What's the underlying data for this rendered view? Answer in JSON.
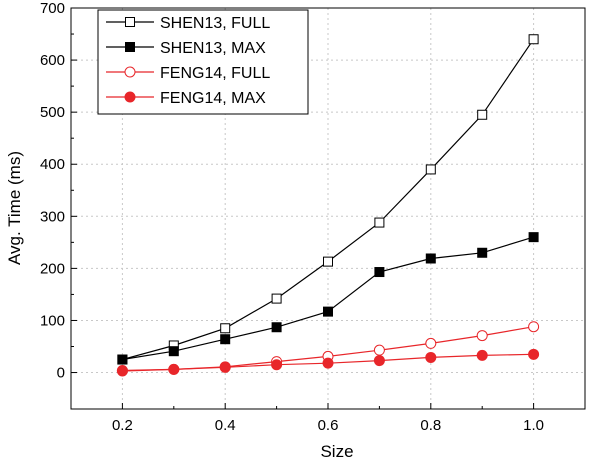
{
  "chart_data": {
    "type": "line",
    "xlabel": "Size",
    "ylabel": "Avg. Time (ms)",
    "xlim": [
      0.1,
      1.1
    ],
    "ylim": [
      -70,
      700
    ],
    "x_ticks": [
      "0.2",
      "0.4",
      "0.6",
      "0.8",
      "1.0"
    ],
    "y_ticks": [
      "0",
      "100",
      "200",
      "300",
      "400",
      "500",
      "600",
      "700"
    ],
    "grid": true,
    "legend_position": "top-left",
    "x": [
      0.2,
      0.3,
      0.4,
      0.5,
      0.6,
      0.7,
      0.8,
      0.9,
      1.0
    ],
    "series": [
      {
        "name": "SHEN13, FULL",
        "color": "#000000",
        "marker": "square-open",
        "values": [
          25,
          52,
          85,
          142,
          213,
          288,
          390,
          495,
          640
        ]
      },
      {
        "name": "SHEN13, MAX",
        "color": "#000000",
        "marker": "square-filled",
        "values": [
          25,
          41,
          64,
          87,
          117,
          193,
          219,
          230,
          260
        ]
      },
      {
        "name": "FENG14, FULL",
        "color": "#e8262a",
        "marker": "circle-open",
        "values": [
          4,
          6,
          11,
          21,
          31,
          43,
          56,
          71,
          88
        ]
      },
      {
        "name": "FENG14, MAX",
        "color": "#e8262a",
        "marker": "circle-filled",
        "values": [
          3,
          6,
          10,
          15,
          18,
          23,
          29,
          33,
          35
        ]
      }
    ]
  }
}
